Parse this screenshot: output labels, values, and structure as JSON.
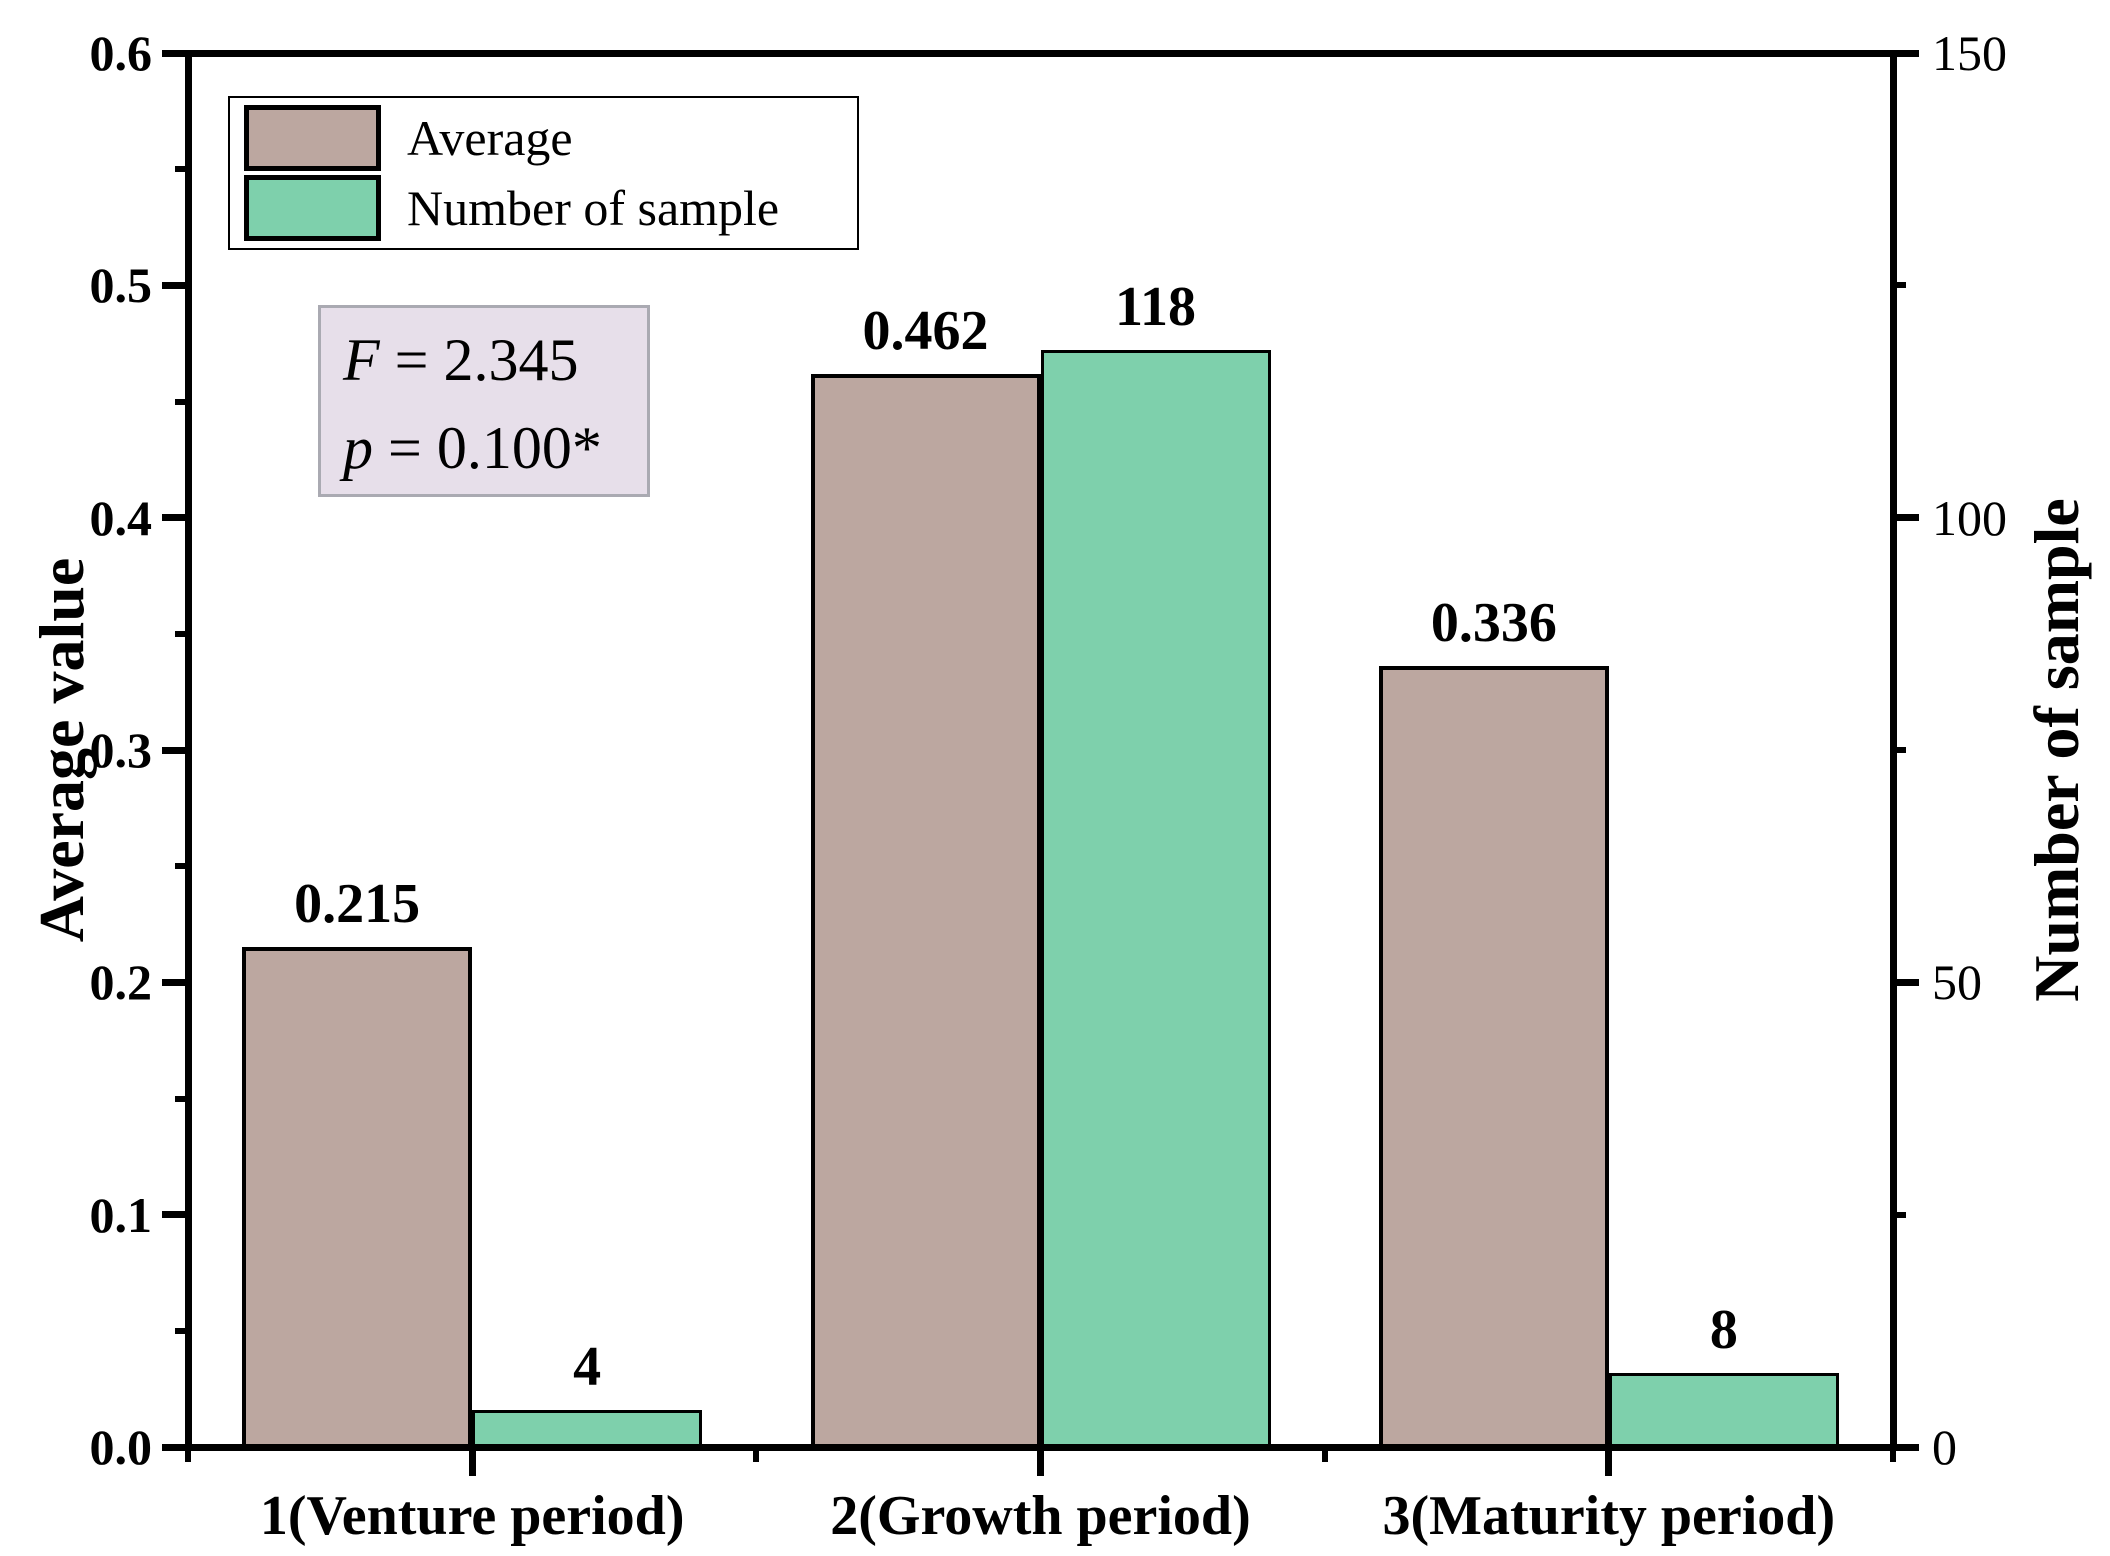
{
  "figure": {
    "background": "#FFFFFF"
  },
  "chart_data": {
    "type": "bar",
    "title": "",
    "categories": [
      "1(Venture period)",
      "2(Growth period)",
      "3(Maturity period)"
    ],
    "series": [
      {
        "name": "Average",
        "axis": "left",
        "color": "#BCA7A0",
        "border_color": "#000000",
        "border_width": 4,
        "values": [
          0.215,
          0.462,
          0.336
        ],
        "value_labels": [
          "0.215",
          "0.462",
          "0.336"
        ]
      },
      {
        "name": "Number of sample",
        "axis": "right",
        "color": "#7ED0AC",
        "border_color": "#000000",
        "border_width": 3,
        "values": [
          4,
          118,
          8
        ],
        "value_labels": [
          "4",
          "118",
          "8"
        ]
      }
    ],
    "left_axis": {
      "title": "Average value",
      "min": 0,
      "max": 0.6,
      "major_ticks": [
        {
          "value": 0,
          "label": "0.0"
        },
        {
          "value": 0.1,
          "label": "0.1"
        },
        {
          "value": 0.2,
          "label": "0.2"
        },
        {
          "value": 0.3,
          "label": "0.3"
        },
        {
          "value": 0.4,
          "label": "0.4"
        },
        {
          "value": 0.5,
          "label": "0.5"
        },
        {
          "value": 0.6,
          "label": "0.6"
        }
      ],
      "minor_ticks": [
        0.05,
        0.15,
        0.25,
        0.35,
        0.45,
        0.55
      ]
    },
    "right_axis": {
      "title": "Number of sample",
      "min": 0,
      "max": 150,
      "major_ticks": [
        {
          "value": 0,
          "label": "0"
        },
        {
          "value": 50,
          "label": "50"
        },
        {
          "value": 100,
          "label": "100"
        },
        {
          "value": 150,
          "label": "150"
        }
      ],
      "minor_ticks": [
        25,
        75,
        125
      ]
    },
    "legend": {
      "items": [
        {
          "label": "Average",
          "color": "#BCA7A0"
        },
        {
          "label": "Number of sample",
          "color": "#7ED0AC"
        }
      ]
    },
    "annotation": {
      "lines": [
        "F = 2.345",
        "p = 0.100*"
      ],
      "background": "#E7DFEA",
      "border_color": "#AAAAB2"
    },
    "layout_hints": {
      "grid": false,
      "legend_position": "top-left-inside",
      "bar_value_labels": true,
      "ticks": "outward"
    }
  }
}
